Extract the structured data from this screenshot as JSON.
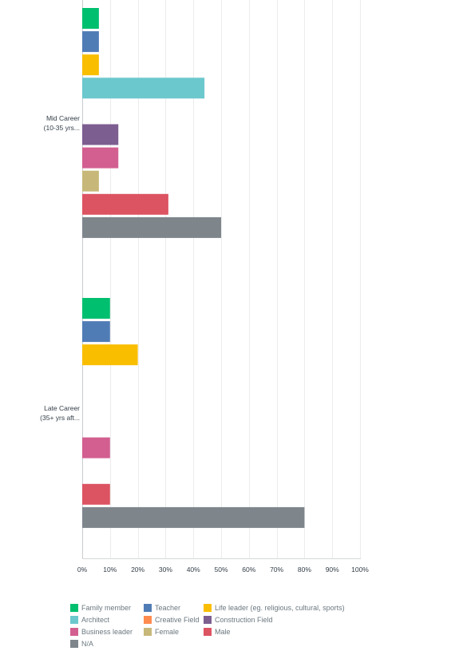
{
  "chart_data": {
    "type": "bar",
    "orientation": "horizontal",
    "categories": [
      {
        "label_lines": [
          "Mid Career",
          "(10-35 yrs..."
        ]
      },
      {
        "label_lines": [
          "Late Career",
          "(35+ yrs aft..."
        ]
      }
    ],
    "series": [
      {
        "name": "Family member",
        "color": "#00bf6f",
        "values": [
          6,
          10
        ]
      },
      {
        "name": "Teacher",
        "color": "#507cb6",
        "values": [
          6,
          10
        ]
      },
      {
        "name": "Life leader (eg. religious, cultural, sports)",
        "color": "#f9be00",
        "values": [
          6,
          20
        ]
      },
      {
        "name": "Architect",
        "color": "#6bc8cd",
        "values": [
          44,
          0
        ]
      },
      {
        "name": "Creative Field",
        "color": "#ff8b4f",
        "values": [
          0,
          0
        ]
      },
      {
        "name": "Construction Field",
        "color": "#7d5e90",
        "values": [
          13,
          0
        ]
      },
      {
        "name": "Business leader",
        "color": "#d25f90",
        "values": [
          13,
          10
        ]
      },
      {
        "name": "Female",
        "color": "#c7b879",
        "values": [
          6,
          0
        ]
      },
      {
        "name": "Male",
        "color": "#dc5362",
        "values": [
          31,
          10
        ]
      },
      {
        "name": "N/A",
        "color": "#7e868c",
        "values": [
          50,
          80
        ]
      }
    ],
    "x_ticks": [
      "0%",
      "10%",
      "20%",
      "30%",
      "40%",
      "50%",
      "60%",
      "70%",
      "80%",
      "90%",
      "100%"
    ],
    "xlim": [
      0,
      100
    ],
    "grid": true,
    "legend_position": "bottom"
  }
}
